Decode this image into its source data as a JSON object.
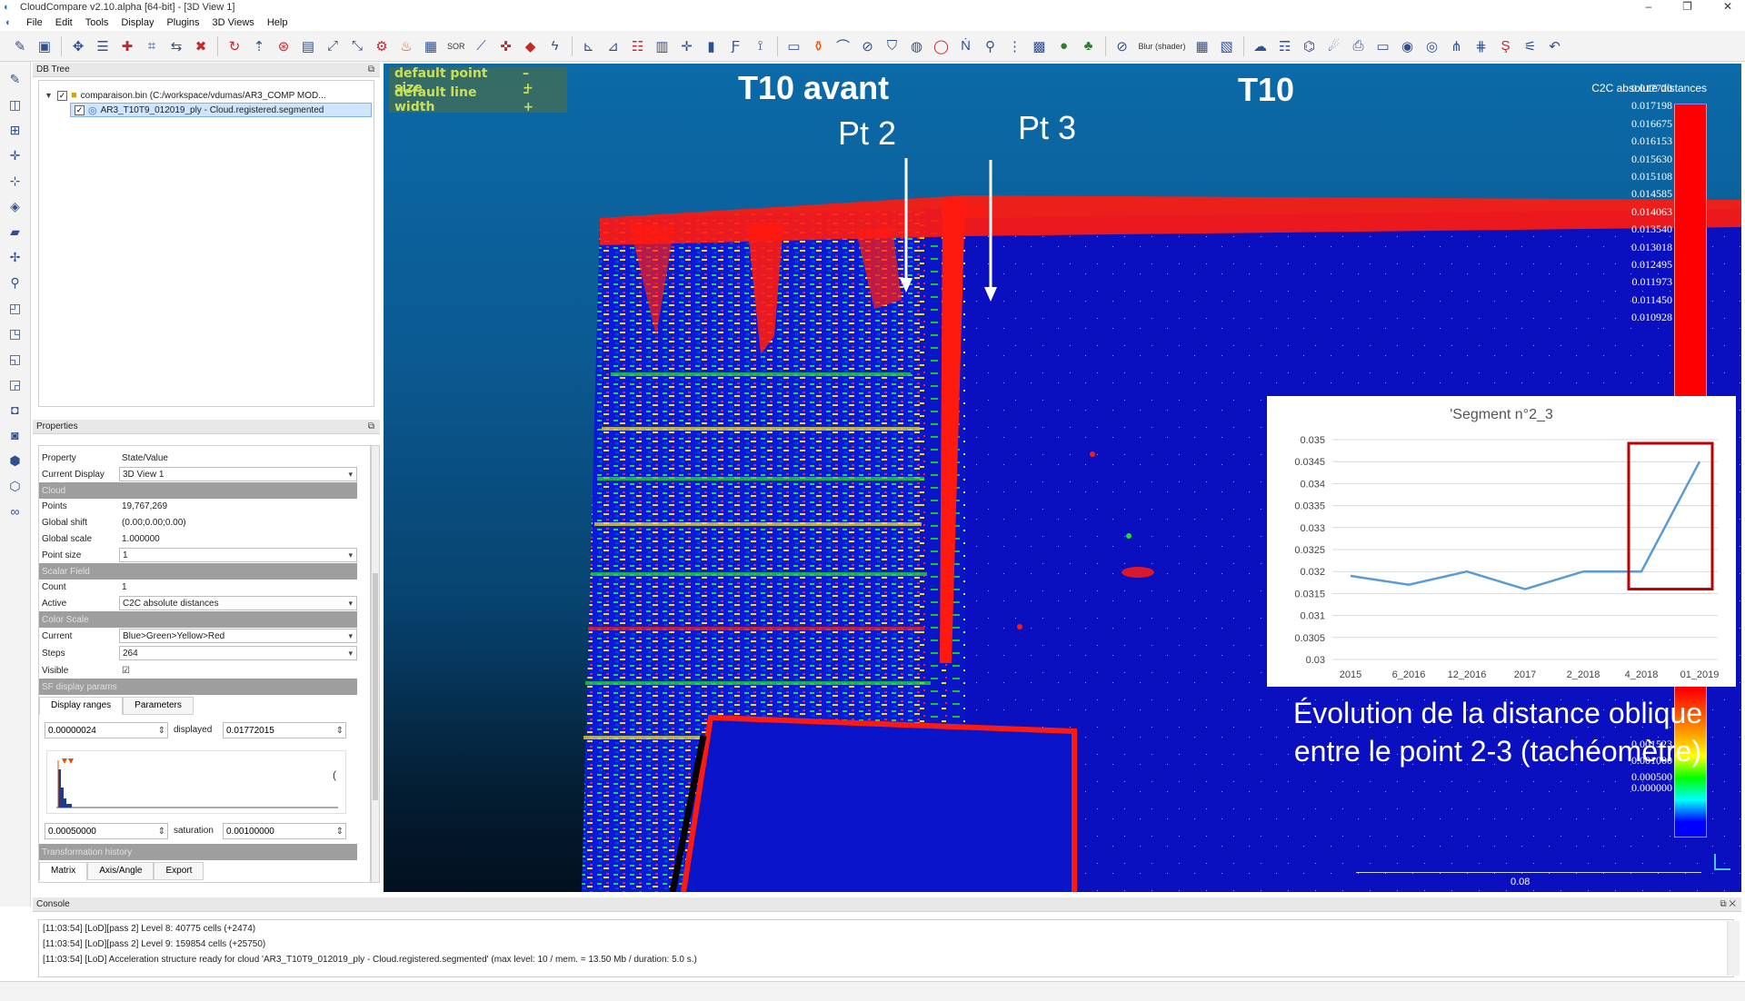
{
  "window": {
    "title": "CloudCompare v2.10.alpha [64-bit] - [3D View 1]",
    "min": "–",
    "max": "❐",
    "close": "✕"
  },
  "menu": [
    "File",
    "Edit",
    "Tools",
    "Display",
    "Plugins",
    "3D Views",
    "Help"
  ],
  "toolbar": {
    "blur_label": "Blur (shader)",
    "sor_label": "SOR",
    "icons": [
      "open-icon",
      "save-icon",
      "settings-icon",
      "list-icon",
      "add-point-icon",
      "crop-icon",
      "merge-icon",
      "delete-icon",
      "subsample-icon",
      "normals-icon",
      "octree-icon",
      "scalar-field-icon",
      "sor-icon",
      "segment-icon",
      "translate-icon",
      "sample-icon",
      "compare-icon",
      "distance-icon",
      "histogram-icon",
      "plane-icon",
      "sphere-icon",
      "ellipse-icon",
      "north-icon"
    ]
  },
  "dbtree": {
    "title": "DB Tree",
    "items": [
      {
        "label": "comparaison.bin (C:/workspace/vdumas/AR3_COMP MOD..."
      },
      {
        "label": "AR3_T10T9_012019_ply - Cloud.registered.segmented"
      }
    ]
  },
  "properties": {
    "title": "Properties",
    "header": {
      "property": "Property",
      "value": "State/Value"
    },
    "current_display": {
      "k": "Current Display",
      "v": "3D View 1"
    },
    "sections": {
      "cloud": "Cloud",
      "scalar_field": "Scalar Field",
      "color_scale": "Color Scale",
      "sf_display": "SF display params",
      "transform": "Transformation history"
    },
    "points": {
      "k": "Points",
      "v": "19,767,269"
    },
    "global_shift": {
      "k": "Global shift",
      "v": "(0.00;0.00;0.00)"
    },
    "global_scale": {
      "k": "Global scale",
      "v": "1.000000"
    },
    "point_size": {
      "k": "Point size",
      "v": "1"
    },
    "count": {
      "k": "Count",
      "v": "1"
    },
    "active": {
      "k": "Active",
      "v": "C2C absolute distances"
    },
    "current": {
      "k": "Current",
      "v": "Blue>Green>Yellow>Red"
    },
    "steps": {
      "k": "Steps",
      "v": "264"
    },
    "visible": {
      "k": "Visible",
      "v": "☑"
    },
    "tabs": [
      "Display ranges",
      "Parameters"
    ],
    "range_min": "0.00000024",
    "displayed_label": "displayed",
    "displayed_val": "0.01772015",
    "sat_min": "0.00050000",
    "saturation_label": "saturation",
    "sat_val": "0.00100000",
    "bottom_tabs": [
      "Matrix",
      "Axis/Angle",
      "Export"
    ]
  },
  "view": {
    "overlay_point": "default point size",
    "overlay_line": "default line width",
    "overlay_controls": "–+",
    "label_left": "T10 avant",
    "label_right": "T10",
    "pt2": "Pt 2",
    "pt3": "Pt 3",
    "scale_title": "C2C absolute distances",
    "scale_ticks_top": [
      "0.017720",
      "0.017198",
      "0.016675",
      "0.016153",
      "0.015630",
      "0.015108",
      "0.014585",
      "0.014063",
      "0.013540",
      "0.013018",
      "0.012495",
      "0.011973",
      "0.011450",
      "0.010928"
    ],
    "scale_ticks_bottom": [
      "0.001523",
      "0.001000",
      "0.000500",
      "0.000000"
    ],
    "ruler_label": "0.08",
    "caption_line1": "Évolution de la distance oblique",
    "caption_line2": "entre le point 2-3 (tachéomètre)"
  },
  "chart_data": {
    "type": "line",
    "title": "'Segment n°2_3",
    "categories": [
      "2015",
      "6_2016",
      "12_2016",
      "2017",
      "2_2018",
      "4_2018",
      "01_2019"
    ],
    "series": [
      {
        "values": [
          0.0319,
          0.0317,
          0.032,
          0.0316,
          0.032,
          0.032,
          0.0345
        ]
      }
    ],
    "ylim": [
      0.03,
      0.035
    ],
    "yticks": [
      "0.03",
      "0.0305",
      "0.031",
      "0.0315",
      "0.032",
      "0.0325",
      "0.033",
      "0.0335",
      "0.034",
      "0.0345",
      "0.035"
    ],
    "grid": true,
    "highlight_categories": [
      "4_2018",
      "01_2019"
    ],
    "colors": {
      "line": "#5b9bd5",
      "highlight": "#c00000"
    }
  },
  "console": {
    "title": "Console",
    "lines": [
      "[11:03:54] [LoD][pass 2] Level 8: 40775 cells (+2474)",
      "[11:03:54] [LoD][pass 2] Level 9: 159854 cells (+25750)",
      "[11:03:54] [LoD] Acceleration structure ready for cloud 'AR3_T10T9_012019_ply - Cloud.registered.segmented' (max level: 10 / mem. = 13.50 Mb / duration: 5.0 s.)"
    ]
  }
}
